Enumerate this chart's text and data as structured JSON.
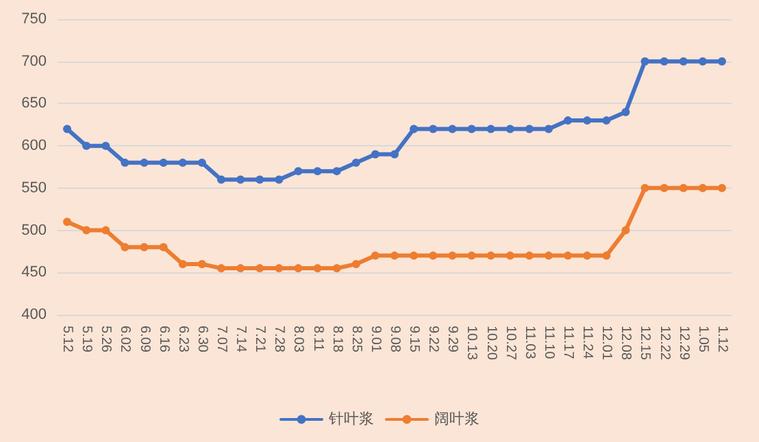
{
  "chart_data": {
    "type": "line",
    "categories": [
      "5.12",
      "5.19",
      "5.26",
      "6.02",
      "6.09",
      "6.16",
      "6.23",
      "6.30",
      "7.07",
      "7.14",
      "7.21",
      "7.28",
      "8.03",
      "8.11",
      "8.18",
      "8.25",
      "9.01",
      "9.08",
      "9.15",
      "9.22",
      "9.29",
      "10.13",
      "10.20",
      "10.27",
      "11.03",
      "11.10",
      "11.17",
      "11.24",
      "12.01",
      "12.08",
      "12.15",
      "12.22",
      "12.29",
      "1.05",
      "1.12"
    ],
    "series": [
      {
        "name": "针叶浆",
        "color": "#4472c4",
        "values": [
          620,
          600,
          600,
          580,
          580,
          580,
          580,
          580,
          560,
          560,
          560,
          560,
          570,
          570,
          570,
          580,
          590,
          590,
          620,
          620,
          620,
          620,
          620,
          620,
          620,
          620,
          630,
          630,
          630,
          640,
          700,
          700,
          700,
          700,
          700
        ]
      },
      {
        "name": "阔叶浆",
        "color": "#ed7d31",
        "values": [
          510,
          500,
          500,
          480,
          480,
          480,
          460,
          460,
          455,
          455,
          455,
          455,
          455,
          455,
          455,
          460,
          470,
          470,
          470,
          470,
          470,
          470,
          470,
          470,
          470,
          470,
          470,
          470,
          470,
          500,
          550,
          550,
          550,
          550,
          550
        ]
      }
    ],
    "ylim": [
      400,
      750
    ],
    "yticks": [
      400,
      450,
      500,
      550,
      600,
      650,
      700,
      750
    ],
    "grid": "y",
    "legend": "bottom",
    "marker": "circle",
    "line_style": "solid"
  }
}
